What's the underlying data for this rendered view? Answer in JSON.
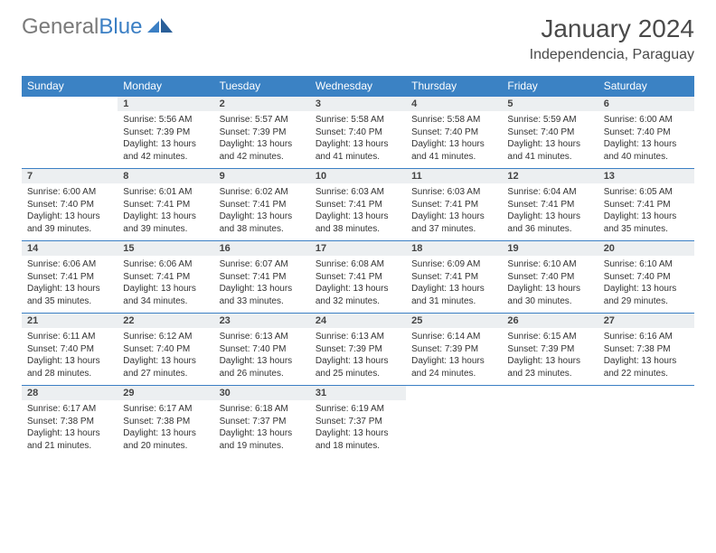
{
  "brand": {
    "part1": "General",
    "part2": "Blue"
  },
  "title": "January 2024",
  "location": "Independencia, Paraguay",
  "colors": {
    "header_bg": "#3b82c4",
    "header_text": "#ffffff",
    "daynum_bg": "#eceff1",
    "border": "#3b7fc4",
    "logo_gray": "#7a7a7a",
    "logo_blue": "#3b7fc4",
    "text": "#333333"
  },
  "weekdays": [
    "Sunday",
    "Monday",
    "Tuesday",
    "Wednesday",
    "Thursday",
    "Friday",
    "Saturday"
  ],
  "weeks": [
    [
      null,
      {
        "n": "1",
        "sr": "5:56 AM",
        "ss": "7:39 PM",
        "dl": "13 hours and 42 minutes."
      },
      {
        "n": "2",
        "sr": "5:57 AM",
        "ss": "7:39 PM",
        "dl": "13 hours and 42 minutes."
      },
      {
        "n": "3",
        "sr": "5:58 AM",
        "ss": "7:40 PM",
        "dl": "13 hours and 41 minutes."
      },
      {
        "n": "4",
        "sr": "5:58 AM",
        "ss": "7:40 PM",
        "dl": "13 hours and 41 minutes."
      },
      {
        "n": "5",
        "sr": "5:59 AM",
        "ss": "7:40 PM",
        "dl": "13 hours and 41 minutes."
      },
      {
        "n": "6",
        "sr": "6:00 AM",
        "ss": "7:40 PM",
        "dl": "13 hours and 40 minutes."
      }
    ],
    [
      {
        "n": "7",
        "sr": "6:00 AM",
        "ss": "7:40 PM",
        "dl": "13 hours and 39 minutes."
      },
      {
        "n": "8",
        "sr": "6:01 AM",
        "ss": "7:41 PM",
        "dl": "13 hours and 39 minutes."
      },
      {
        "n": "9",
        "sr": "6:02 AM",
        "ss": "7:41 PM",
        "dl": "13 hours and 38 minutes."
      },
      {
        "n": "10",
        "sr": "6:03 AM",
        "ss": "7:41 PM",
        "dl": "13 hours and 38 minutes."
      },
      {
        "n": "11",
        "sr": "6:03 AM",
        "ss": "7:41 PM",
        "dl": "13 hours and 37 minutes."
      },
      {
        "n": "12",
        "sr": "6:04 AM",
        "ss": "7:41 PM",
        "dl": "13 hours and 36 minutes."
      },
      {
        "n": "13",
        "sr": "6:05 AM",
        "ss": "7:41 PM",
        "dl": "13 hours and 35 minutes."
      }
    ],
    [
      {
        "n": "14",
        "sr": "6:06 AM",
        "ss": "7:41 PM",
        "dl": "13 hours and 35 minutes."
      },
      {
        "n": "15",
        "sr": "6:06 AM",
        "ss": "7:41 PM",
        "dl": "13 hours and 34 minutes."
      },
      {
        "n": "16",
        "sr": "6:07 AM",
        "ss": "7:41 PM",
        "dl": "13 hours and 33 minutes."
      },
      {
        "n": "17",
        "sr": "6:08 AM",
        "ss": "7:41 PM",
        "dl": "13 hours and 32 minutes."
      },
      {
        "n": "18",
        "sr": "6:09 AM",
        "ss": "7:41 PM",
        "dl": "13 hours and 31 minutes."
      },
      {
        "n": "19",
        "sr": "6:10 AM",
        "ss": "7:40 PM",
        "dl": "13 hours and 30 minutes."
      },
      {
        "n": "20",
        "sr": "6:10 AM",
        "ss": "7:40 PM",
        "dl": "13 hours and 29 minutes."
      }
    ],
    [
      {
        "n": "21",
        "sr": "6:11 AM",
        "ss": "7:40 PM",
        "dl": "13 hours and 28 minutes."
      },
      {
        "n": "22",
        "sr": "6:12 AM",
        "ss": "7:40 PM",
        "dl": "13 hours and 27 minutes."
      },
      {
        "n": "23",
        "sr": "6:13 AM",
        "ss": "7:40 PM",
        "dl": "13 hours and 26 minutes."
      },
      {
        "n": "24",
        "sr": "6:13 AM",
        "ss": "7:39 PM",
        "dl": "13 hours and 25 minutes."
      },
      {
        "n": "25",
        "sr": "6:14 AM",
        "ss": "7:39 PM",
        "dl": "13 hours and 24 minutes."
      },
      {
        "n": "26",
        "sr": "6:15 AM",
        "ss": "7:39 PM",
        "dl": "13 hours and 23 minutes."
      },
      {
        "n": "27",
        "sr": "6:16 AM",
        "ss": "7:38 PM",
        "dl": "13 hours and 22 minutes."
      }
    ],
    [
      {
        "n": "28",
        "sr": "6:17 AM",
        "ss": "7:38 PM",
        "dl": "13 hours and 21 minutes."
      },
      {
        "n": "29",
        "sr": "6:17 AM",
        "ss": "7:38 PM",
        "dl": "13 hours and 20 minutes."
      },
      {
        "n": "30",
        "sr": "6:18 AM",
        "ss": "7:37 PM",
        "dl": "13 hours and 19 minutes."
      },
      {
        "n": "31",
        "sr": "6:19 AM",
        "ss": "7:37 PM",
        "dl": "13 hours and 18 minutes."
      },
      null,
      null,
      null
    ]
  ],
  "labels": {
    "sunrise": "Sunrise:",
    "sunset": "Sunset:",
    "daylight": "Daylight:"
  }
}
